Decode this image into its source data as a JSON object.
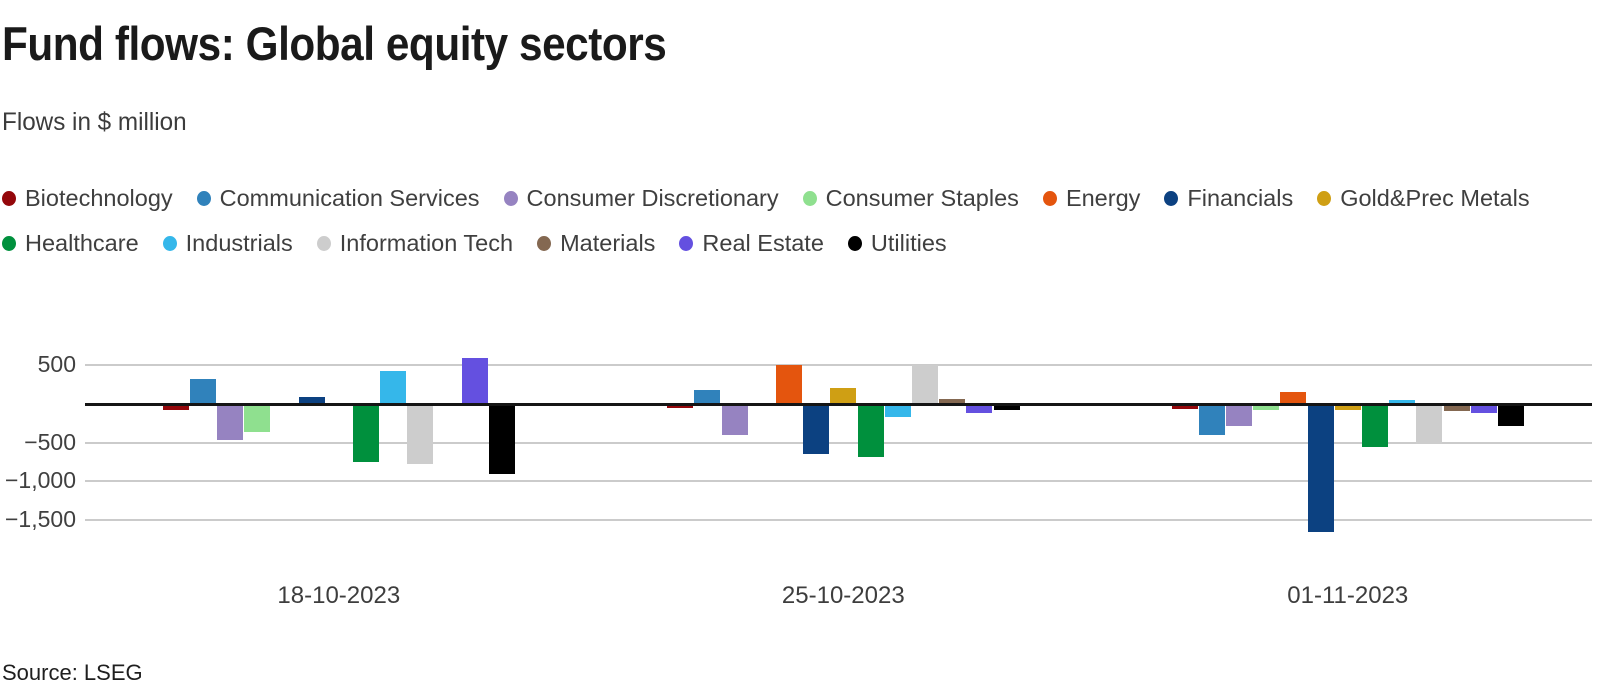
{
  "header": {
    "title": "Fund flows: Global equity sectors",
    "subtitle": "Flows in $ million"
  },
  "footer": {
    "source": "Source: LSEG"
  },
  "style_colors": {
    "gridline": "#cbcbcb",
    "zero_line": "#151515",
    "title_text": "#1a1a1a",
    "legend_text": "#3f3f3f",
    "tick_text": "#404040"
  },
  "chart_data": {
    "type": "bar",
    "title": "Fund flows: Global equity sectors",
    "subtitle": "Flows in $ million",
    "unit": "$ million",
    "categories": [
      "18-10-2023",
      "25-10-2023",
      "01-11-2023"
    ],
    "yticks": [
      500,
      -500,
      -1000,
      -1500
    ],
    "ytick_labels": [
      "500",
      "−500",
      "−1,000",
      "−1,500"
    ],
    "ylim": [
      -1700,
      700
    ],
    "grid": true,
    "legend_position": "top",
    "legend_rows": [
      7,
      6
    ],
    "series": [
      {
        "name": "Biotechnology",
        "color": "#94070b",
        "values": [
          -80,
          -50,
          -65
        ]
      },
      {
        "name": "Communication Services",
        "color": "#3082bb",
        "values": [
          320,
          175,
          -405
        ]
      },
      {
        "name": "Consumer Discretionary",
        "color": "#9683c1",
        "values": [
          -470,
          -400,
          -290
        ]
      },
      {
        "name": "Consumer Staples",
        "color": "#8fe08f",
        "values": [
          -360,
          -20,
          -80
        ]
      },
      {
        "name": "Energy",
        "color": "#e4550e",
        "values": [
          0,
          500,
          150
        ]
      },
      {
        "name": "Financials",
        "color": "#0c4181",
        "values": [
          90,
          -650,
          -1655
        ]
      },
      {
        "name": "Gold&Prec Metals",
        "color": "#cf9f14",
        "values": [
          0,
          210,
          -75
        ]
      },
      {
        "name": "Healthcare",
        "color": "#00903d",
        "values": [
          -750,
          -690,
          -560
        ]
      },
      {
        "name": "Industrials",
        "color": "#35b7ea",
        "values": [
          430,
          -170,
          50
        ]
      },
      {
        "name": "Information Tech",
        "color": "#cdcdcd",
        "values": [
          -780,
          505,
          -520
        ]
      },
      {
        "name": "Materials",
        "color": "#846851",
        "values": [
          -30,
          60,
          -90
        ]
      },
      {
        "name": "Real Estate",
        "color": "#6450e0",
        "values": [
          600,
          -120,
          -110
        ]
      },
      {
        "name": "Utilities",
        "color": "#000000",
        "values": [
          -900,
          -80,
          -280
        ]
      }
    ]
  }
}
